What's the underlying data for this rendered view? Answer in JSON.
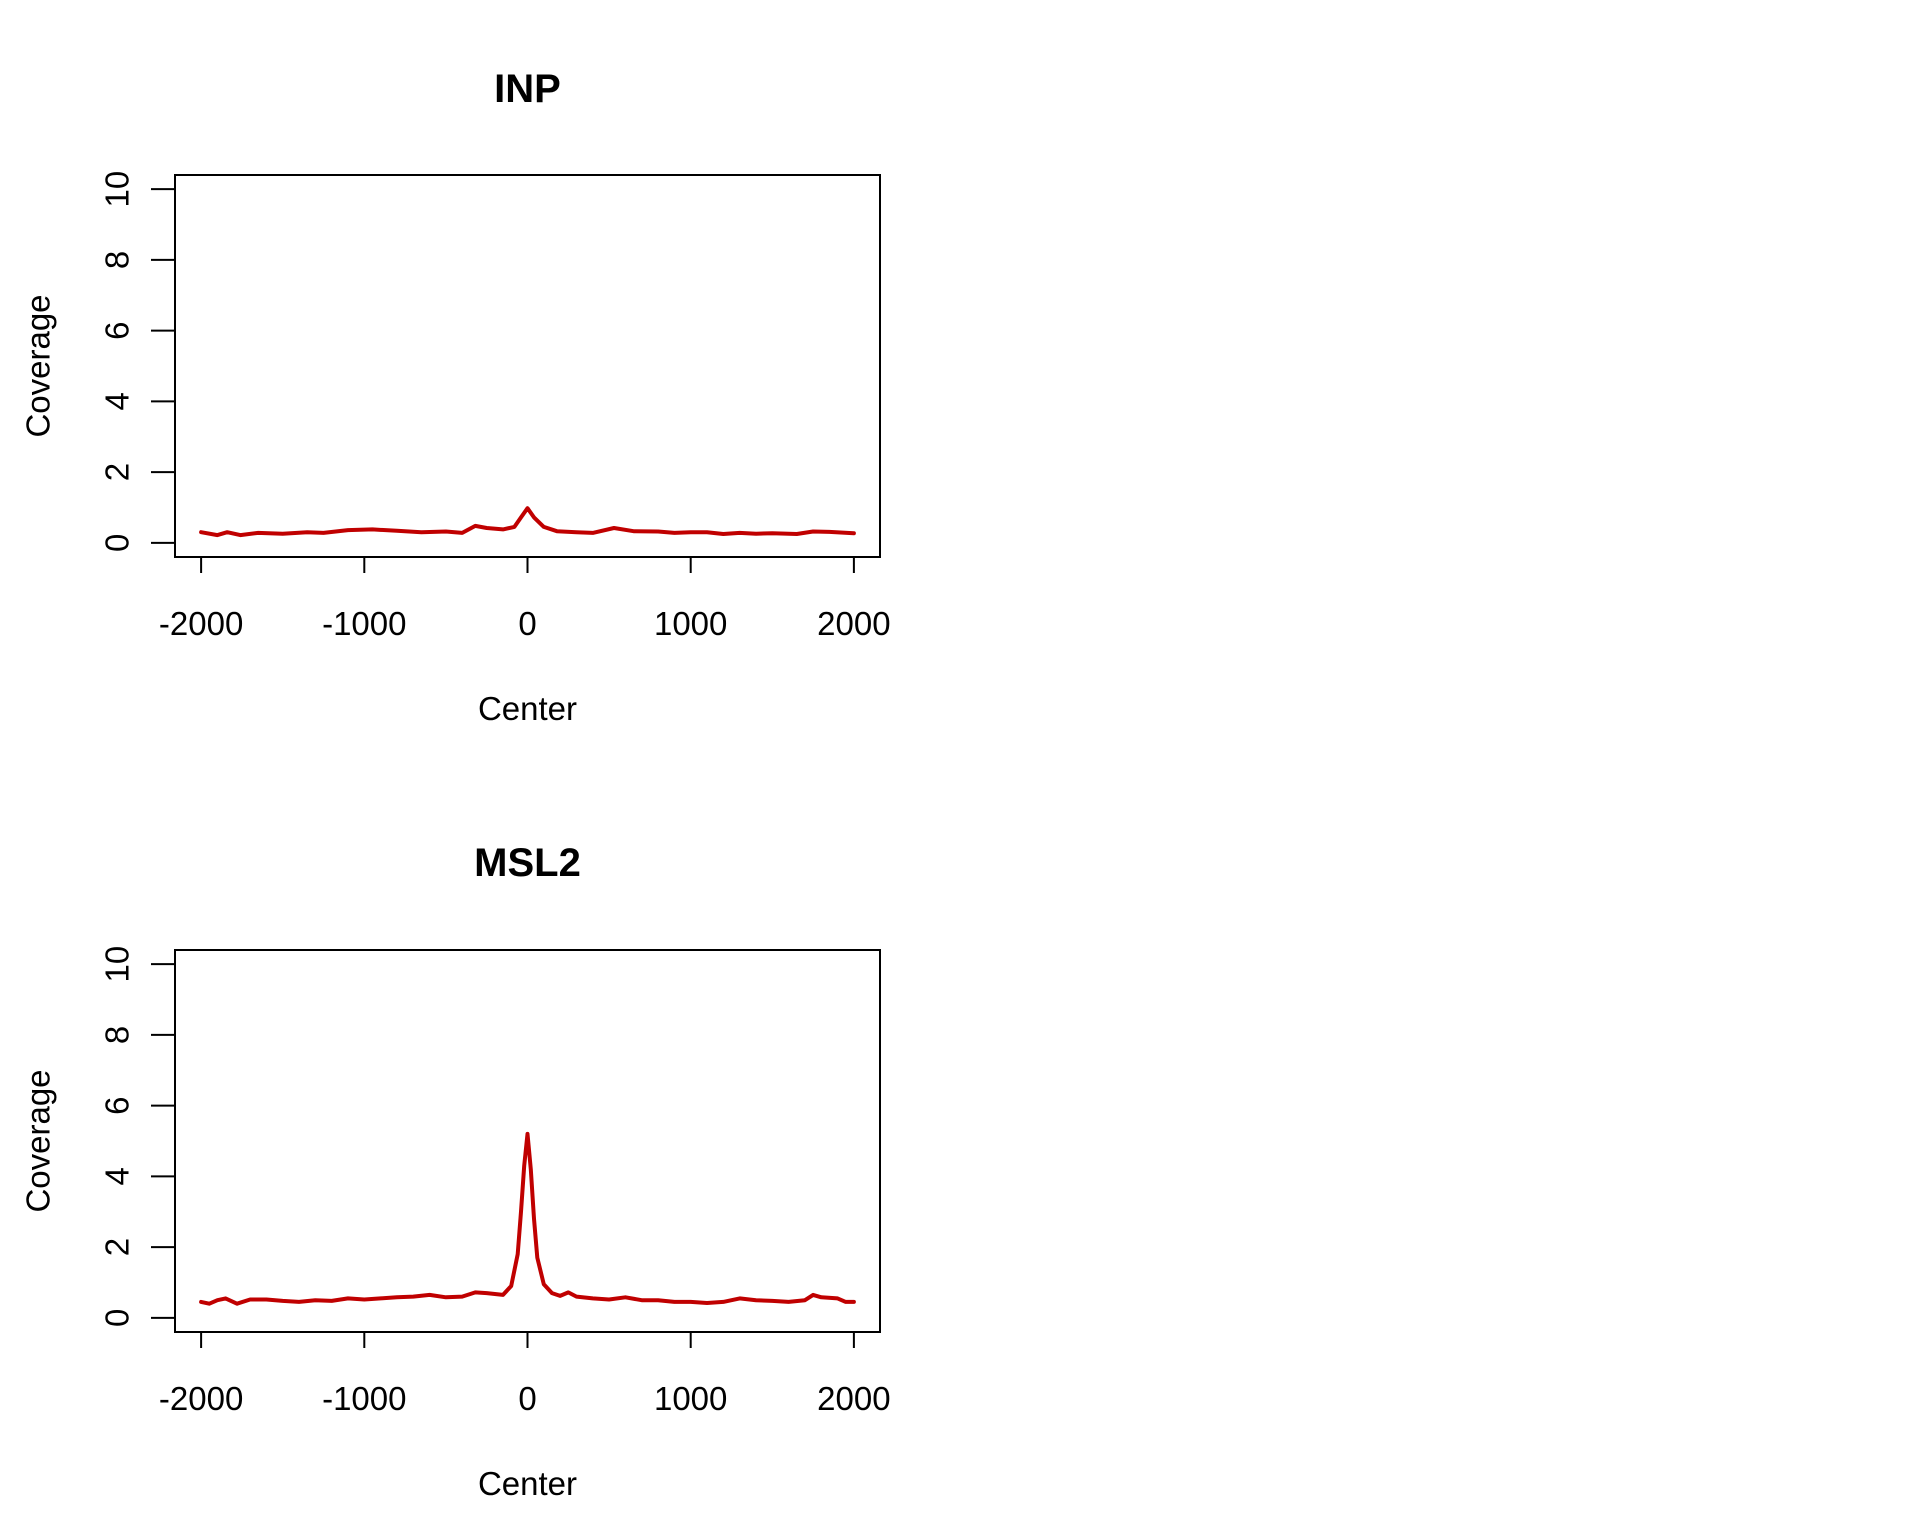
{
  "chart_data": [
    {
      "type": "line",
      "title": "INP",
      "xlabel": "Center",
      "ylabel": "Coverage",
      "xlim": [
        -2000,
        2000
      ],
      "ylim": [
        0,
        10
      ],
      "xticks": [
        -2000,
        -1000,
        0,
        1000,
        2000
      ],
      "yticks": [
        0,
        2,
        4,
        6,
        8,
        10
      ],
      "grid": false,
      "color": "#c00000",
      "x": [
        -2000,
        -1900,
        -1840,
        -1760,
        -1650,
        -1500,
        -1350,
        -1250,
        -1100,
        -950,
        -800,
        -650,
        -500,
        -400,
        -320,
        -250,
        -150,
        -80,
        -40,
        0,
        40,
        100,
        180,
        300,
        400,
        530,
        650,
        800,
        900,
        1000,
        1100,
        1200,
        1300,
        1400,
        1500,
        1650,
        1750,
        1850,
        2000
      ],
      "y": [
        0.3,
        0.22,
        0.3,
        0.22,
        0.28,
        0.26,
        0.3,
        0.28,
        0.36,
        0.38,
        0.34,
        0.3,
        0.32,
        0.28,
        0.48,
        0.42,
        0.38,
        0.45,
        0.72,
        0.98,
        0.72,
        0.45,
        0.33,
        0.3,
        0.28,
        0.42,
        0.33,
        0.32,
        0.28,
        0.3,
        0.3,
        0.25,
        0.28,
        0.26,
        0.27,
        0.25,
        0.32,
        0.31,
        0.27
      ]
    },
    {
      "type": "line",
      "title": "MSL2",
      "xlabel": "Center",
      "ylabel": "Coverage",
      "xlim": [
        -2000,
        2000
      ],
      "ylim": [
        0,
        10
      ],
      "xticks": [
        -2000,
        -1000,
        0,
        1000,
        2000
      ],
      "yticks": [
        0,
        2,
        4,
        6,
        8,
        10
      ],
      "grid": false,
      "color": "#c00000",
      "x": [
        -2000,
        -1950,
        -1900,
        -1850,
        -1780,
        -1700,
        -1600,
        -1500,
        -1400,
        -1300,
        -1200,
        -1100,
        -1000,
        -900,
        -800,
        -700,
        -600,
        -500,
        -400,
        -320,
        -250,
        -150,
        -100,
        -60,
        -40,
        -20,
        0,
        20,
        40,
        60,
        100,
        150,
        200,
        250,
        300,
        400,
        500,
        600,
        700,
        800,
        900,
        1000,
        1100,
        1200,
        1300,
        1400,
        1500,
        1600,
        1700,
        1750,
        1800,
        1900,
        1950,
        2000
      ],
      "y": [
        0.45,
        0.4,
        0.5,
        0.55,
        0.4,
        0.52,
        0.52,
        0.48,
        0.45,
        0.5,
        0.48,
        0.55,
        0.52,
        0.55,
        0.58,
        0.6,
        0.65,
        0.58,
        0.6,
        0.72,
        0.7,
        0.65,
        0.9,
        1.8,
        3.0,
        4.3,
        5.2,
        4.2,
        2.8,
        1.7,
        0.95,
        0.7,
        0.62,
        0.72,
        0.6,
        0.55,
        0.52,
        0.58,
        0.5,
        0.5,
        0.45,
        0.45,
        0.42,
        0.45,
        0.55,
        0.5,
        0.48,
        0.45,
        0.5,
        0.65,
        0.58,
        0.55,
        0.45,
        0.45
      ]
    }
  ]
}
